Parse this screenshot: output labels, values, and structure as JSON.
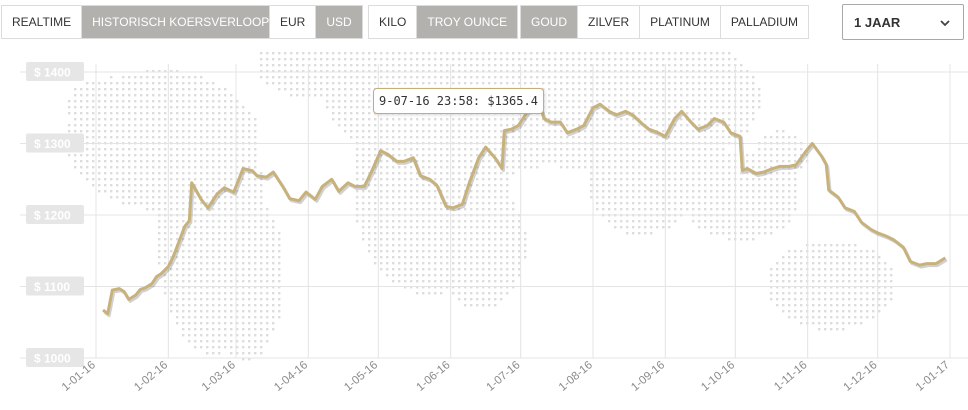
{
  "toolbar": {
    "mode": [
      {
        "label": "REALTIME",
        "active": false
      },
      {
        "label": "HISTORISCH KOERSVERLOOP",
        "active": true
      }
    ],
    "currency": [
      {
        "label": "EUR",
        "active": false
      },
      {
        "label": "USD",
        "active": true
      }
    ],
    "unit": [
      {
        "label": "KILO",
        "active": false
      },
      {
        "label": "TROY OUNCE",
        "active": true
      }
    ],
    "metal": [
      {
        "label": "GOUD",
        "active": true
      },
      {
        "label": "ZILVER",
        "active": false
      },
      {
        "label": "PLATINUM",
        "active": false
      },
      {
        "label": "PALLADIUM",
        "active": false
      }
    ],
    "period": "1 JAAR"
  },
  "tooltip": {
    "text": "9-07-16 23:58: $1365.4"
  },
  "colors": {
    "line": "#c8b27c",
    "active_button": "#b3b1ae",
    "map_dots": "#dddddd",
    "label_bg": "#e6e6e6"
  },
  "chart_data": {
    "type": "line",
    "title": "",
    "xlabel": "",
    "ylabel": "",
    "ylim": [
      1000,
      1400
    ],
    "y_ticks": [
      1000,
      1100,
      1200,
      1300,
      1400
    ],
    "y_tick_labels": [
      "$ 1000",
      "$ 1100",
      "$ 1200",
      "$ 1300",
      "$ 1400"
    ],
    "x_tick_labels": [
      "1-01-16",
      "1-02-16",
      "1-03-16",
      "1-04-16",
      "1-05-16",
      "1-06-16",
      "1-07-16",
      "1-08-16",
      "1-09-16",
      "1-10-16",
      "1-11-16",
      "1-12-16",
      "1-01-17"
    ],
    "x_tick_days": [
      0,
      31,
      60,
      91,
      121,
      152,
      182,
      213,
      244,
      274,
      305,
      335,
      366
    ],
    "grid": true,
    "series": [
      {
        "x": [
          "2016-01-04",
          "2016-01-06",
          "2016-01-08",
          "2016-01-11",
          "2016-01-13",
          "2016-01-15",
          "2016-01-18",
          "2016-01-20",
          "2016-01-22",
          "2016-01-25",
          "2016-01-27",
          "2016-01-29",
          "2016-02-01",
          "2016-02-03",
          "2016-02-05",
          "2016-02-08",
          "2016-02-10",
          "2016-02-11",
          "2016-02-15",
          "2016-02-18",
          "2016-02-22",
          "2016-02-25",
          "2016-02-29",
          "2016-03-02",
          "2016-03-04",
          "2016-03-08",
          "2016-03-10",
          "2016-03-14",
          "2016-03-17",
          "2016-03-21",
          "2016-03-24",
          "2016-03-28",
          "2016-03-31",
          "2016-04-04",
          "2016-04-07",
          "2016-04-11",
          "2016-04-14",
          "2016-04-18",
          "2016-04-21",
          "2016-04-25",
          "2016-04-28",
          "2016-05-02",
          "2016-05-05",
          "2016-05-09",
          "2016-05-12",
          "2016-05-16",
          "2016-05-19",
          "2016-05-23",
          "2016-05-26",
          "2016-05-30",
          "2016-06-02",
          "2016-06-06",
          "2016-06-09",
          "2016-06-13",
          "2016-06-16",
          "2016-06-20",
          "2016-06-23",
          "2016-06-24",
          "2016-06-27",
          "2016-06-30",
          "2016-07-04",
          "2016-07-06",
          "2016-07-08",
          "2016-07-11",
          "2016-07-14",
          "2016-07-18",
          "2016-07-21",
          "2016-07-25",
          "2016-07-28",
          "2016-08-01",
          "2016-08-04",
          "2016-08-08",
          "2016-08-11",
          "2016-08-15",
          "2016-08-18",
          "2016-08-22",
          "2016-08-25",
          "2016-08-29",
          "2016-09-01",
          "2016-09-05",
          "2016-09-08",
          "2016-09-12",
          "2016-09-15",
          "2016-09-19",
          "2016-09-22",
          "2016-09-26",
          "2016-09-29",
          "2016-10-03",
          "2016-10-04",
          "2016-10-06",
          "2016-10-10",
          "2016-10-13",
          "2016-10-17",
          "2016-10-20",
          "2016-10-24",
          "2016-10-27",
          "2016-10-31",
          "2016-11-03",
          "2016-11-07",
          "2016-11-09",
          "2016-11-10",
          "2016-11-14",
          "2016-11-17",
          "2016-11-21",
          "2016-11-24",
          "2016-11-28",
          "2016-12-01",
          "2016-12-05",
          "2016-12-08",
          "2016-12-12",
          "2016-12-15",
          "2016-12-19",
          "2016-12-22",
          "2016-12-26",
          "2016-12-30"
        ],
        "y": [
          1067,
          1062,
          1095,
          1097,
          1093,
          1082,
          1088,
          1096,
          1098,
          1104,
          1114,
          1118,
          1128,
          1141,
          1158,
          1184,
          1192,
          1245,
          1222,
          1210,
          1230,
          1238,
          1232,
          1248,
          1265,
          1262,
          1255,
          1253,
          1260,
          1240,
          1223,
          1220,
          1232,
          1222,
          1240,
          1250,
          1233,
          1245,
          1240,
          1240,
          1260,
          1290,
          1285,
          1275,
          1275,
          1280,
          1255,
          1250,
          1242,
          1212,
          1210,
          1215,
          1245,
          1280,
          1295,
          1280,
          1265,
          1318,
          1320,
          1325,
          1345,
          1360,
          1365,
          1335,
          1330,
          1330,
          1315,
          1320,
          1325,
          1350,
          1355,
          1345,
          1340,
          1345,
          1340,
          1328,
          1320,
          1315,
          1310,
          1335,
          1345,
          1330,
          1320,
          1325,
          1335,
          1330,
          1315,
          1310,
          1262,
          1265,
          1258,
          1260,
          1265,
          1268,
          1268,
          1270,
          1288,
          1300,
          1282,
          1270,
          1235,
          1225,
          1210,
          1205,
          1190,
          1180,
          1175,
          1170,
          1165,
          1155,
          1135,
          1130,
          1132,
          1132,
          1140
        ]
      }
    ]
  }
}
